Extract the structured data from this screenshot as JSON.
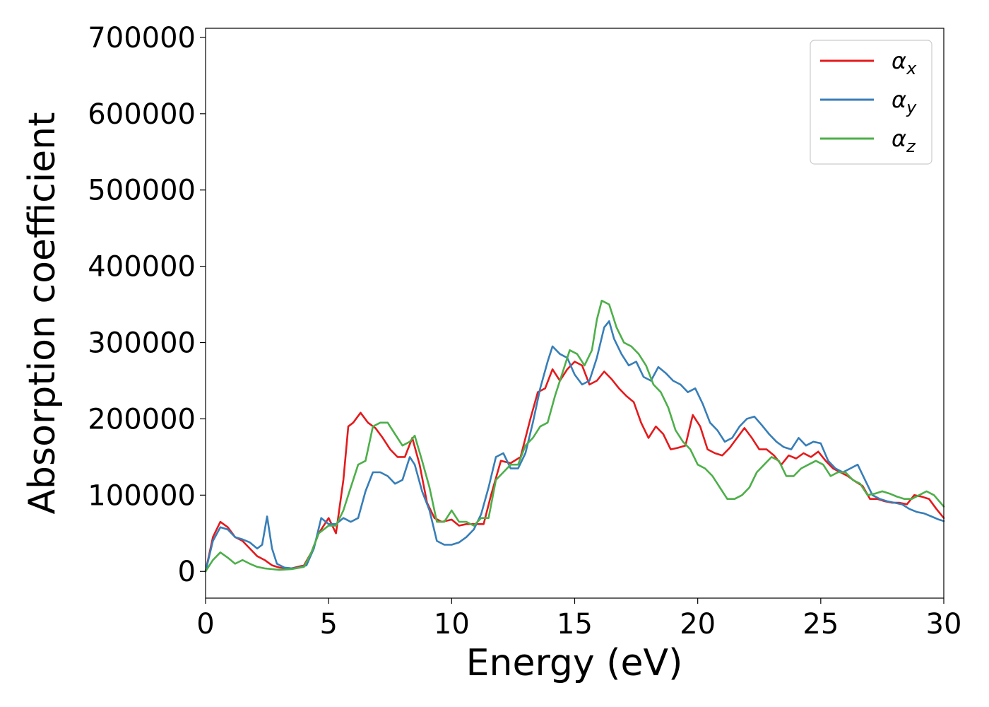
{
  "chart_data": {
    "type": "line",
    "xlabel": "Energy (eV)",
    "ylabel": "Absorption coefficient",
    "xlim": [
      0,
      30
    ],
    "ylim": [
      -35000,
      712000
    ],
    "xticks": [
      0,
      5,
      10,
      15,
      20,
      25,
      30
    ],
    "yticks": [
      0,
      100000,
      200000,
      300000,
      400000,
      500000,
      600000,
      700000
    ],
    "grid": false,
    "legend_position": "top-right",
    "series": [
      {
        "name": "α",
        "subscript": "x",
        "color": "#e41a1c",
        "x": [
          0,
          0.3,
          0.6,
          0.9,
          1.2,
          1.5,
          1.8,
          2.1,
          2.4,
          2.7,
          3.0,
          3.5,
          4.0,
          4.3,
          4.6,
          5.0,
          5.3,
          5.6,
          5.8,
          6.0,
          6.3,
          6.6,
          6.9,
          7.2,
          7.5,
          7.8,
          8.1,
          8.4,
          8.7,
          9.0,
          9.3,
          9.6,
          10.0,
          10.3,
          10.6,
          11.0,
          11.3,
          11.6,
          12.0,
          12.4,
          12.8,
          13.2,
          13.5,
          13.8,
          14.1,
          14.4,
          14.7,
          15.0,
          15.3,
          15.6,
          15.9,
          16.2,
          16.5,
          16.8,
          17.1,
          17.4,
          17.7,
          18.0,
          18.3,
          18.6,
          18.9,
          19.2,
          19.5,
          19.8,
          20.1,
          20.4,
          20.7,
          21.0,
          21.3,
          21.6,
          21.9,
          22.2,
          22.5,
          22.8,
          23.1,
          23.4,
          23.7,
          24.0,
          24.3,
          24.6,
          24.9,
          25.2,
          25.5,
          25.8,
          26.1,
          26.4,
          26.7,
          27.0,
          27.3,
          27.6,
          27.9,
          28.2,
          28.5,
          28.8,
          29.1,
          29.4,
          29.7,
          30.0
        ],
        "y": [
          0,
          45000,
          65000,
          58000,
          45000,
          40000,
          30000,
          20000,
          15000,
          8000,
          5000,
          4000,
          8000,
          25000,
          50000,
          70000,
          50000,
          120000,
          190000,
          195000,
          208000,
          195000,
          188000,
          175000,
          160000,
          150000,
          150000,
          175000,
          140000,
          90000,
          70000,
          65000,
          68000,
          60000,
          62000,
          62000,
          62000,
          100000,
          145000,
          142000,
          150000,
          200000,
          235000,
          240000,
          265000,
          250000,
          265000,
          275000,
          270000,
          245000,
          250000,
          262000,
          252000,
          240000,
          230000,
          222000,
          195000,
          175000,
          190000,
          180000,
          160000,
          162000,
          165000,
          205000,
          190000,
          160000,
          155000,
          152000,
          162000,
          175000,
          188000,
          175000,
          160000,
          160000,
          152000,
          140000,
          152000,
          148000,
          155000,
          150000,
          157000,
          145000,
          135000,
          130000,
          125000,
          118000,
          112000,
          95000,
          95000,
          92000,
          90000,
          90000,
          88000,
          100000,
          98000,
          95000,
          82000,
          70000
        ]
      },
      {
        "name": "α",
        "subscript": "y",
        "color": "#377eb8",
        "x": [
          0,
          0.3,
          0.6,
          0.9,
          1.2,
          1.5,
          1.8,
          2.1,
          2.3,
          2.5,
          2.7,
          2.9,
          3.2,
          3.5,
          3.8,
          4.1,
          4.4,
          4.7,
          5.0,
          5.3,
          5.6,
          5.9,
          6.2,
          6.5,
          6.8,
          7.1,
          7.4,
          7.7,
          8.0,
          8.3,
          8.5,
          8.8,
          9.1,
          9.4,
          9.7,
          10.0,
          10.3,
          10.6,
          10.9,
          11.2,
          11.5,
          11.8,
          12.1,
          12.4,
          12.7,
          13.0,
          13.3,
          13.6,
          13.9,
          14.1,
          14.4,
          14.7,
          15.0,
          15.3,
          15.6,
          15.9,
          16.2,
          16.4,
          16.6,
          16.9,
          17.2,
          17.5,
          17.8,
          18.1,
          18.4,
          18.7,
          19.0,
          19.3,
          19.6,
          19.9,
          20.2,
          20.5,
          20.8,
          21.1,
          21.4,
          21.7,
          22.0,
          22.3,
          22.6,
          22.9,
          23.2,
          23.5,
          23.8,
          24.1,
          24.4,
          24.7,
          25.0,
          25.3,
          25.6,
          25.9,
          26.2,
          26.5,
          26.8,
          27.1,
          27.4,
          27.7,
          28.0,
          28.3,
          28.6,
          28.9,
          29.2,
          29.5,
          29.8,
          30.0
        ],
        "y": [
          0,
          40000,
          58000,
          55000,
          45000,
          42000,
          38000,
          30000,
          35000,
          72000,
          30000,
          10000,
          5000,
          4000,
          5000,
          8000,
          30000,
          70000,
          62000,
          62000,
          70000,
          65000,
          70000,
          105000,
          130000,
          130000,
          125000,
          115000,
          120000,
          150000,
          140000,
          105000,
          80000,
          40000,
          35000,
          35000,
          38000,
          45000,
          55000,
          75000,
          110000,
          150000,
          155000,
          135000,
          135000,
          155000,
          195000,
          240000,
          275000,
          295000,
          285000,
          280000,
          258000,
          245000,
          250000,
          280000,
          320000,
          328000,
          305000,
          285000,
          270000,
          275000,
          255000,
          250000,
          268000,
          260000,
          250000,
          245000,
          235000,
          240000,
          220000,
          195000,
          185000,
          170000,
          175000,
          190000,
          200000,
          203000,
          192000,
          180000,
          170000,
          163000,
          160000,
          175000,
          165000,
          170000,
          168000,
          145000,
          135000,
          130000,
          135000,
          140000,
          120000,
          100000,
          95000,
          92000,
          90000,
          88000,
          82000,
          78000,
          76000,
          72000,
          68000,
          66000
        ]
      },
      {
        "name": "α",
        "subscript": "z",
        "color": "#4daf4a",
        "x": [
          0,
          0.3,
          0.6,
          0.9,
          1.2,
          1.5,
          1.8,
          2.1,
          2.4,
          2.7,
          3.0,
          3.5,
          4.0,
          4.3,
          4.6,
          5.0,
          5.3,
          5.6,
          5.9,
          6.2,
          6.5,
          6.8,
          7.1,
          7.4,
          7.7,
          8.0,
          8.3,
          8.5,
          8.8,
          9.1,
          9.4,
          9.7,
          10.0,
          10.3,
          10.6,
          10.9,
          11.2,
          11.5,
          11.8,
          12.1,
          12.4,
          12.7,
          13.0,
          13.3,
          13.6,
          13.9,
          14.2,
          14.5,
          14.8,
          15.1,
          15.4,
          15.7,
          15.9,
          16.1,
          16.4,
          16.7,
          17.0,
          17.3,
          17.6,
          17.9,
          18.2,
          18.5,
          18.8,
          19.1,
          19.4,
          19.7,
          20.0,
          20.3,
          20.6,
          20.9,
          21.2,
          21.5,
          21.8,
          22.1,
          22.4,
          22.7,
          23.0,
          23.3,
          23.6,
          23.9,
          24.2,
          24.5,
          24.8,
          25.1,
          25.4,
          25.7,
          26.0,
          26.3,
          26.6,
          26.9,
          27.2,
          27.5,
          27.8,
          28.1,
          28.4,
          28.7,
          29.0,
          29.3,
          29.6,
          30.0
        ],
        "y": [
          0,
          15000,
          25000,
          18000,
          10000,
          15000,
          10000,
          6000,
          4000,
          3000,
          2000,
          3000,
          6000,
          25000,
          50000,
          60000,
          60000,
          80000,
          110000,
          140000,
          145000,
          190000,
          195000,
          195000,
          180000,
          165000,
          170000,
          178000,
          145000,
          110000,
          65000,
          65000,
          80000,
          65000,
          65000,
          60000,
          70000,
          70000,
          120000,
          130000,
          140000,
          140000,
          165000,
          175000,
          190000,
          195000,
          230000,
          260000,
          290000,
          285000,
          270000,
          290000,
          330000,
          355000,
          350000,
          320000,
          300000,
          295000,
          285000,
          270000,
          245000,
          235000,
          215000,
          185000,
          170000,
          160000,
          140000,
          135000,
          125000,
          110000,
          95000,
          95000,
          100000,
          110000,
          130000,
          140000,
          150000,
          145000,
          125000,
          125000,
          135000,
          140000,
          145000,
          140000,
          125000,
          130000,
          130000,
          120000,
          115000,
          100000,
          102000,
          105000,
          102000,
          98000,
          95000,
          95000,
          100000,
          105000,
          100000,
          85000
        ]
      }
    ]
  }
}
